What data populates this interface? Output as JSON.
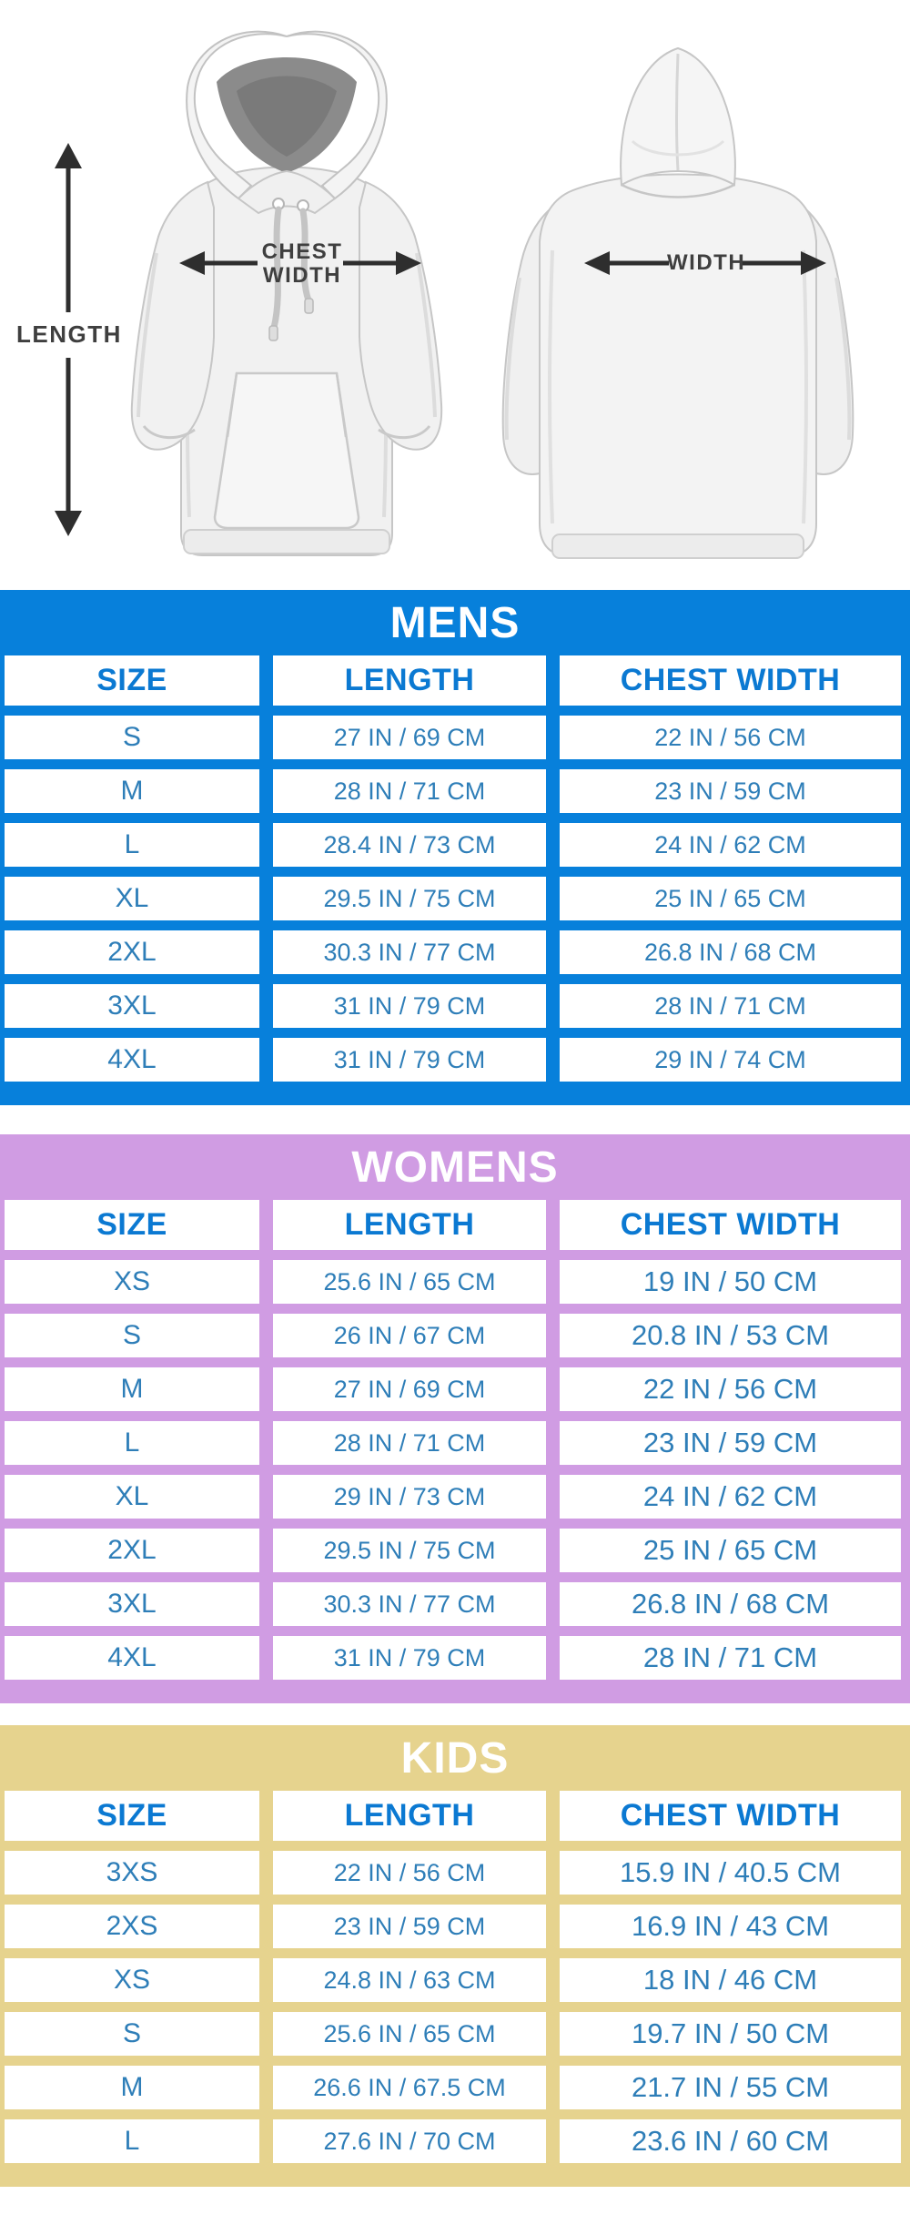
{
  "diagram": {
    "length_label": "LENGTH",
    "chest_label_line1": "CHEST",
    "chest_label_line2": "WIDTH",
    "back_width_label": "WIDTH"
  },
  "columns": [
    "SIZE",
    "LENGTH",
    "CHEST WIDTH"
  ],
  "tables": [
    {
      "id": "mens",
      "title": "MENS",
      "accent": "#0780db",
      "rows": [
        {
          "size": "S",
          "length": "27 IN / 69 CM",
          "chest": "22 IN / 56 CM"
        },
        {
          "size": "M",
          "length": "28 IN / 71 CM",
          "chest": "23 IN / 59 CM"
        },
        {
          "size": "L",
          "length": "28.4 IN / 73 CM",
          "chest": "24 IN / 62 CM"
        },
        {
          "size": "XL",
          "length": "29.5 IN / 75 CM",
          "chest": "25 IN / 65 CM"
        },
        {
          "size": "2XL",
          "length": "30.3 IN / 77 CM",
          "chest": "26.8 IN / 68 CM"
        },
        {
          "size": "3XL",
          "length": "31 IN / 79 CM",
          "chest": "28 IN / 71 CM"
        },
        {
          "size": "4XL",
          "length": "31 IN / 79 CM",
          "chest": "29 IN / 74 CM"
        }
      ]
    },
    {
      "id": "womens",
      "title": "WOMENS",
      "accent": "#d09ce3",
      "rows": [
        {
          "size": "XS",
          "length": "25.6 IN / 65 CM",
          "chest": "19 IN / 50 CM"
        },
        {
          "size": "S",
          "length": "26 IN / 67 CM",
          "chest": "20.8 IN / 53 CM"
        },
        {
          "size": "M",
          "length": "27 IN / 69 CM",
          "chest": "22 IN / 56 CM"
        },
        {
          "size": "L",
          "length": "28 IN / 71 CM",
          "chest": "23 IN / 59 CM"
        },
        {
          "size": "XL",
          "length": "29 IN / 73 CM",
          "chest": "24 IN / 62 CM"
        },
        {
          "size": "2XL",
          "length": "29.5 IN / 75 CM",
          "chest": "25 IN / 65 CM"
        },
        {
          "size": "3XL",
          "length": "30.3 IN / 77 CM",
          "chest": "26.8 IN / 68 CM"
        },
        {
          "size": "4XL",
          "length": "31 IN / 79 CM",
          "chest": "28 IN / 71 CM"
        }
      ]
    },
    {
      "id": "kids",
      "title": "KIDS",
      "accent": "#e6d38e",
      "rows": [
        {
          "size": "3XS",
          "length": "22 IN / 56 CM",
          "chest": "15.9 IN / 40.5 CM"
        },
        {
          "size": "2XS",
          "length": "23 IN / 59 CM",
          "chest": "16.9 IN / 43 CM"
        },
        {
          "size": "XS",
          "length": "24.8 IN / 63 CM",
          "chest": "18 IN / 46 CM"
        },
        {
          "size": "S",
          "length": "25.6 IN / 65 CM",
          "chest": "19.7 IN / 50 CM"
        },
        {
          "size": "M",
          "length": "26.6 IN / 67.5 CM",
          "chest": "21.7 IN / 55 CM"
        },
        {
          "size": "L",
          "length": "27.6 IN / 70 CM",
          "chest": "23.6 IN / 60 CM"
        }
      ]
    }
  ],
  "colors": {
    "mens_accent": "#0780db",
    "womens_accent": "#d09ce3",
    "kids_accent": "#e6d38e",
    "column_header_text": "#0b79d2",
    "cell_text": "#2e7eb8",
    "title_text": "#ffffff",
    "arrow": "#2e2e2e",
    "label_text": "#3f3f3f"
  }
}
